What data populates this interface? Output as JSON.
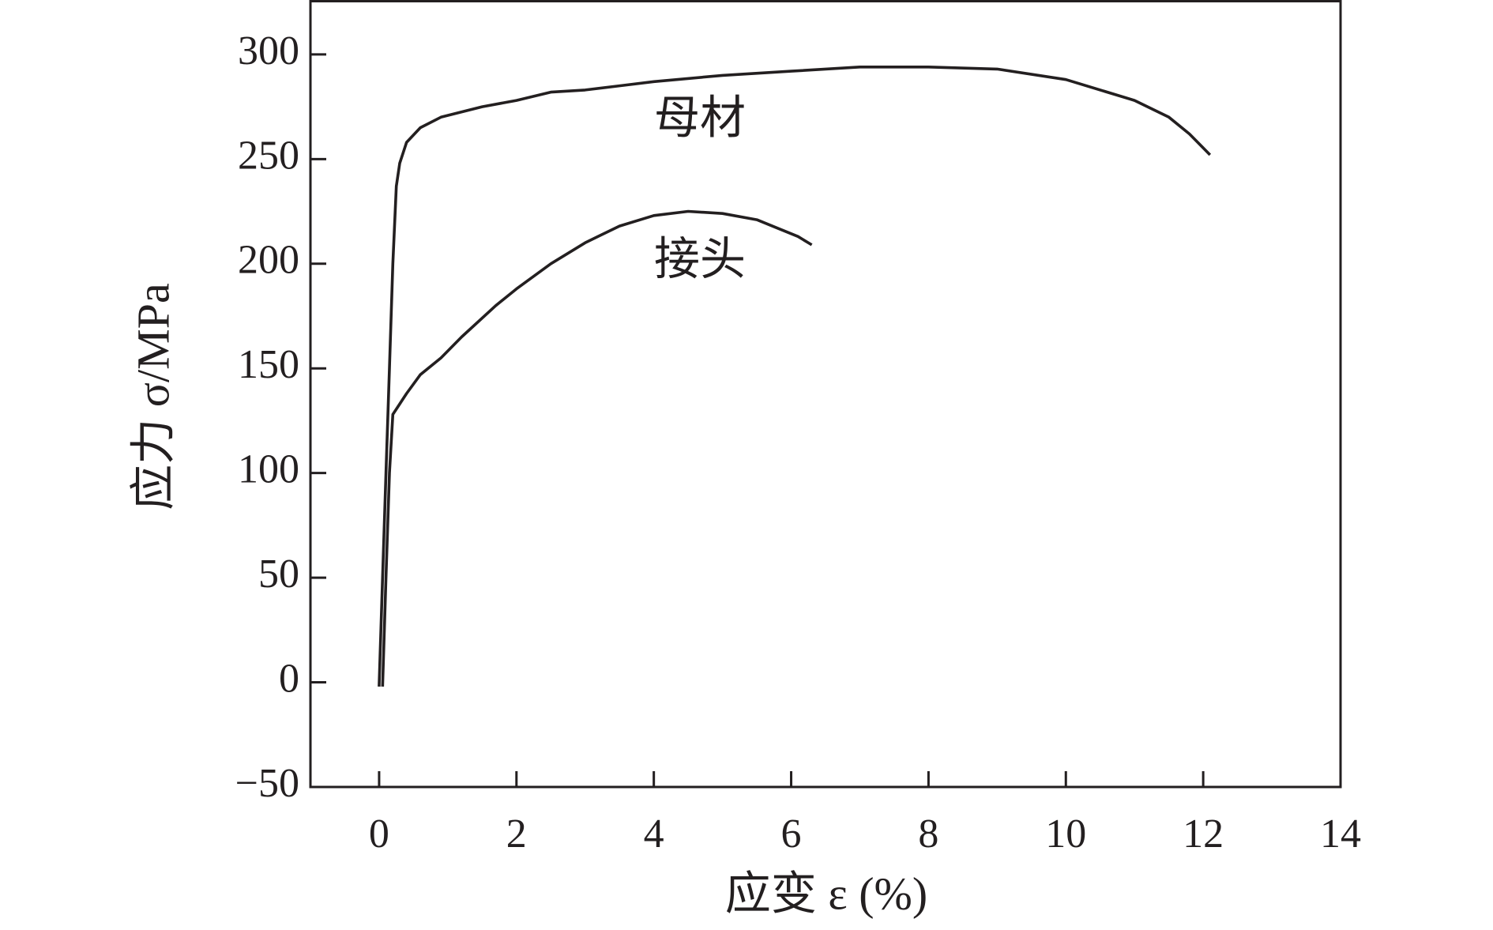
{
  "chart_data": {
    "type": "line",
    "x_label": "应变 ε (%)",
    "y_label": "应力 σ/MPa",
    "xlim": [
      -1,
      14
    ],
    "xticks": [
      0,
      2,
      4,
      6,
      8,
      10,
      12,
      14
    ],
    "ylim": [
      -50,
      326
    ],
    "yticks": [
      {
        "value": -50,
        "label": "−50"
      },
      0,
      50,
      100,
      150,
      200,
      250,
      300
    ],
    "series": [
      {
        "name": "母材",
        "color": "#231f20",
        "x": [
          0,
          0.05,
          0.1,
          0.15,
          0.2,
          0.25,
          0.3,
          0.4,
          0.6,
          0.9,
          1.5,
          2,
          2.5,
          3,
          3.5,
          4,
          5,
          6,
          7,
          8,
          9,
          10,
          11,
          11.5,
          11.8,
          12.1
        ],
        "values": [
          -2,
          50,
          100,
          150,
          200,
          237,
          248,
          258,
          265,
          270,
          275,
          278,
          282,
          283,
          285,
          287,
          290,
          292,
          294,
          294,
          293,
          288,
          278,
          270,
          262,
          252
        ]
      },
      {
        "name": "接头",
        "color": "#231f20",
        "x": [
          0.05,
          0.1,
          0.15,
          0.2,
          0.4,
          0.6,
          0.9,
          1.2,
          1.7,
          2,
          2.5,
          3,
          3.5,
          4,
          4.5,
          5,
          5.5,
          5.8,
          6.1,
          6.3
        ],
        "values": [
          -2,
          50,
          100,
          128,
          138,
          147,
          155,
          165,
          180,
          188,
          200,
          210,
          218,
          223,
          225,
          224,
          221,
          217,
          213,
          209
        ]
      }
    ]
  }
}
